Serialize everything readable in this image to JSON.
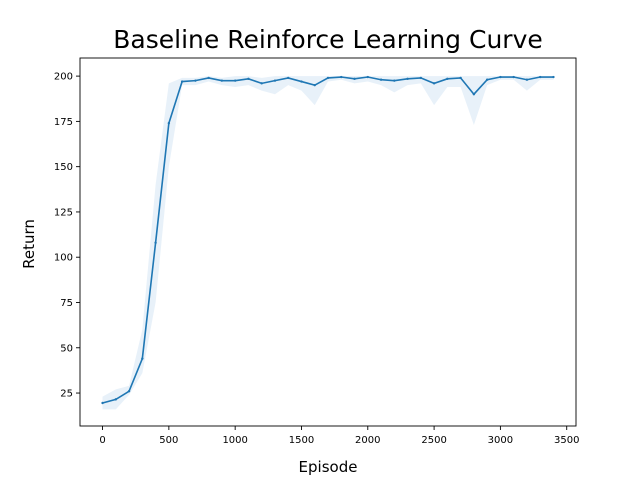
{
  "chart_data": {
    "type": "line",
    "title": "Baseline Reinforce Learning Curve",
    "xlabel": "Episode",
    "ylabel": "Return",
    "xlim": [
      -170,
      3570
    ],
    "ylim": [
      6.8,
      210
    ],
    "xticks": [
      0,
      500,
      1000,
      1500,
      2000,
      2500,
      3000,
      3500
    ],
    "yticks": [
      25,
      50,
      75,
      100,
      125,
      150,
      175,
      200
    ],
    "grid": false,
    "colors": {
      "line": "#1f77b4",
      "band": "#dbe9f6"
    },
    "series": [
      {
        "x": [
          0,
          100,
          200,
          300,
          400,
          500,
          600,
          700,
          800,
          900,
          1000,
          1100,
          1200,
          1300,
          1400,
          1500,
          1600,
          1700,
          1800,
          1900,
          2000,
          2100,
          2200,
          2300,
          2400,
          2500,
          2600,
          2700,
          2800,
          2900,
          3000,
          3100,
          3200,
          3300,
          3400
        ],
        "y": [
          19.5,
          21.5,
          26,
          44,
          108,
          174,
          197,
          197.5,
          199,
          197.5,
          197.5,
          198.5,
          196,
          197.5,
          199,
          197,
          195,
          199,
          199.5,
          198.5,
          199.5,
          198,
          197.5,
          198.5,
          199,
          196,
          198.5,
          199,
          190,
          198,
          199.5,
          199.5,
          198,
          199.5,
          199.5
        ],
        "y_low": [
          16,
          16,
          24,
          36,
          75,
          150,
          195,
          195,
          197,
          195,
          194,
          195,
          192,
          190,
          195,
          192,
          184,
          197,
          198,
          196,
          197,
          195,
          191,
          195,
          196,
          184,
          194,
          194,
          173,
          195,
          198,
          198,
          192,
          198,
          198
        ],
        "y_high": [
          23,
          27,
          29,
          60,
          140,
          196,
          199,
          199,
          200,
          199,
          200,
          200,
          199,
          200,
          200,
          200,
          200,
          200,
          200,
          200,
          200,
          200,
          200,
          200,
          200,
          200,
          200,
          200,
          200,
          200,
          200,
          200,
          200,
          200,
          200
        ]
      }
    ]
  }
}
